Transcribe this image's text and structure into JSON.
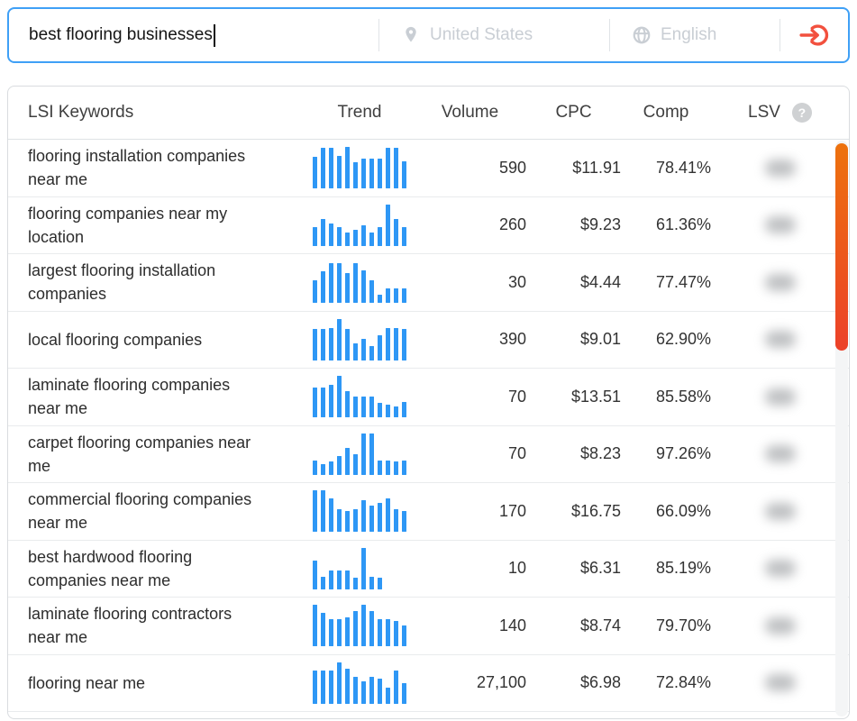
{
  "search": {
    "query": "best flooring businesses",
    "location": "United States",
    "language": "English"
  },
  "table": {
    "headers": {
      "keywords": "LSI Keywords",
      "trend": "Trend",
      "volume": "Volume",
      "cpc": "CPC",
      "comp": "Comp",
      "lsv": "LSV",
      "help": "?"
    },
    "lsv_note": "LSV values are blurred / hidden in the UI",
    "rows": [
      {
        "keyword": "flooring installation companies near me",
        "volume": "590",
        "cpc": "$11.91",
        "comp": "78.41%",
        "trend": [
          75,
          97,
          97,
          78,
          100,
          63,
          72,
          72,
          72,
          97,
          97,
          65
        ]
      },
      {
        "keyword": "flooring companies near my location",
        "volume": "260",
        "cpc": "$9.23",
        "comp": "61.36%",
        "trend": [
          45,
          65,
          55,
          45,
          33,
          40,
          50,
          33,
          45,
          100,
          65,
          45
        ]
      },
      {
        "keyword": "largest flooring installation companies",
        "volume": "30",
        "cpc": "$4.44",
        "comp": "77.47%",
        "trend": [
          55,
          75,
          95,
          95,
          72,
          95,
          78,
          55,
          20,
          35,
          35,
          35
        ]
      },
      {
        "keyword": "local flooring companies",
        "volume": "390",
        "cpc": "$9.01",
        "comp": "62.90%",
        "trend": [
          75,
          75,
          78,
          100,
          75,
          42,
          52,
          35,
          60,
          78,
          78,
          75
        ]
      },
      {
        "keyword": "laminate flooring companies near me",
        "volume": "70",
        "cpc": "$13.51",
        "comp": "85.58%",
        "trend": [
          72,
          72,
          78,
          100,
          62,
          50,
          50,
          50,
          35,
          30,
          25,
          38
        ]
      },
      {
        "keyword": "carpet flooring companies near me",
        "volume": "70",
        "cpc": "$8.23",
        "comp": "97.26%",
        "trend": [
          35,
          25,
          32,
          45,
          65,
          50,
          100,
          100,
          35,
          35,
          32,
          35
        ]
      },
      {
        "keyword": "commercial flooring companies near me",
        "volume": "170",
        "cpc": "$16.75",
        "comp": "66.09%",
        "trend": [
          100,
          100,
          80,
          55,
          50,
          55,
          75,
          62,
          70,
          80,
          55,
          50
        ]
      },
      {
        "keyword": "best hardwood flooring companies near me",
        "volume": "10",
        "cpc": "$6.31",
        "comp": "85.19%",
        "trend": [
          70,
          30,
          45,
          45,
          45,
          28,
          100,
          30,
          28,
          0,
          0,
          0
        ]
      },
      {
        "keyword": "laminate flooring contractors near me",
        "volume": "140",
        "cpc": "$8.74",
        "comp": "79.70%",
        "trend": [
          100,
          80,
          65,
          65,
          70,
          85,
          100,
          85,
          65,
          65,
          60,
          50
        ]
      },
      {
        "keyword": "flooring near me",
        "volume": "27,100",
        "cpc": "$6.98",
        "comp": "72.84%",
        "trend": [
          80,
          80,
          80,
          100,
          85,
          65,
          55,
          65,
          60,
          40,
          80,
          50
        ]
      }
    ]
  },
  "colors": {
    "accent_blue": "#3fa0f6",
    "bar_blue": "#2e97f5",
    "submit_red": "#f2503e",
    "scrollbar_top": "#ed720e",
    "scrollbar_bottom": "#ec4129",
    "placeholder_gray": "#c9ced4"
  }
}
